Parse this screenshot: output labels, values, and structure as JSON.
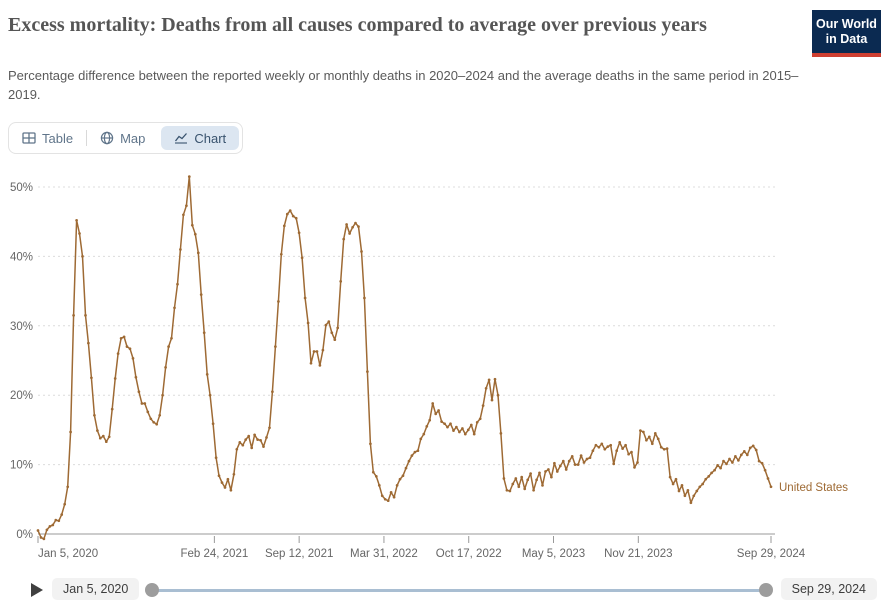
{
  "header": {
    "title": "Excess mortality: Deaths from all causes compared to average over previous years",
    "subtitle": "Percentage difference between the reported weekly or monthly deaths in 2020–2024 and the average deaths in the same period in 2015–2019.",
    "logo": {
      "line1": "Our World",
      "line2": "in Data",
      "bg_color": "#0b2a51",
      "accent_color": "#cf3f31"
    }
  },
  "tabs": {
    "items": [
      {
        "label": "Table",
        "icon": "table-grid-icon",
        "active": false
      },
      {
        "label": "Map",
        "icon": "globe-icon",
        "active": false
      },
      {
        "label": "Chart",
        "icon": "line-chart-icon",
        "active": true
      }
    ],
    "active_bg": "#dce6f1"
  },
  "chart_data": {
    "type": "line",
    "title": "Excess mortality: Deaths from all causes compared to average over previous years",
    "xlabel": "",
    "ylabel": "",
    "unit": "%",
    "grid": true,
    "legend_position": "end-of-line",
    "text_color": "#666666",
    "grid_color": "#dcdcdc",
    "zero_line_color": "#999999",
    "y_axis": {
      "ticks": [
        0,
        10,
        20,
        30,
        40,
        50
      ],
      "tick_labels": [
        "0%",
        "10%",
        "20%",
        "30%",
        "40%",
        "50%"
      ],
      "range": [
        -2,
        52
      ]
    },
    "x_axis": {
      "ticks": [
        {
          "label": "Jan 5, 2020",
          "week": 0,
          "anchor": "start"
        },
        {
          "label": "Feb 24, 2021",
          "week": 59.43,
          "anchor": "middle"
        },
        {
          "label": "Sep 12, 2021",
          "week": 88.0,
          "anchor": "middle"
        },
        {
          "label": "Mar 31, 2022",
          "week": 116.57,
          "anchor": "middle"
        },
        {
          "label": "Oct 17, 2022",
          "week": 145.14,
          "anchor": "middle"
        },
        {
          "label": "May 5, 2023",
          "week": 173.71,
          "anchor": "middle"
        },
        {
          "label": "Nov 21, 2023",
          "week": 202.29,
          "anchor": "middle"
        },
        {
          "label": "Sep 29, 2024",
          "week": 247.0,
          "anchor": "middle"
        }
      ]
    },
    "series": [
      {
        "name": "United States",
        "color": "#9e6a34",
        "interval": "weekly",
        "start": "Jan 5, 2020",
        "end": "Sep 29, 2024",
        "values": [
          0.5,
          -0.5,
          -0.7,
          0.6,
          1.1,
          1.3,
          2.0,
          1.9,
          2.8,
          4.3,
          6.8,
          14.7,
          31.5,
          45.2,
          43.3,
          40.0,
          31.5,
          27.5,
          22.5,
          17.1,
          14.9,
          13.8,
          14.1,
          13.3,
          14.0,
          18.0,
          22.4,
          26.0,
          28.2,
          28.4,
          27.0,
          26.7,
          25.3,
          22.6,
          20.5,
          18.8,
          18.8,
          17.6,
          16.6,
          16.1,
          15.8,
          17.1,
          20.0,
          24.0,
          27.0,
          28.2,
          32.6,
          36.0,
          41.0,
          46.0,
          47.3,
          51.5,
          44.5,
          43.2,
          40.5,
          34.5,
          29.0,
          23.0,
          20.0,
          15.9,
          11.0,
          8.4,
          7.4,
          6.7,
          7.9,
          6.3,
          8.6,
          12.2,
          13.2,
          12.8,
          13.6,
          14.1,
          12.4,
          14.3,
          13.6,
          13.5,
          12.6,
          13.9,
          15.3,
          20.5,
          27.0,
          33.5,
          40.3,
          44.4,
          46.1,
          46.6,
          45.8,
          45.5,
          43.4,
          39.8,
          34.0,
          30.4,
          24.6,
          26.3,
          26.3,
          24.3,
          26.5,
          30.1,
          30.6,
          29.0,
          28.0,
          29.7,
          36.4,
          42.5,
          44.6,
          43.3,
          44.2,
          44.8,
          44.3,
          40.7,
          34.0,
          23.4,
          13.0,
          8.9,
          8.3,
          7.0,
          5.5,
          5.0,
          4.8,
          6.0,
          5.3,
          7.0,
          7.9,
          8.4,
          9.5,
          10.5,
          11.3,
          11.8,
          12.0,
          13.7,
          14.4,
          15.5,
          16.4,
          18.8,
          17.3,
          17.8,
          16.2,
          15.9,
          15.4,
          15.9,
          14.9,
          15.4,
          14.7,
          15.2,
          14.4,
          15.0,
          15.7,
          14.4,
          16.1,
          16.6,
          18.5,
          21.0,
          22.2,
          19.3,
          22.3,
          20.0,
          14.5,
          8.0,
          6.3,
          6.2,
          7.2,
          8.0,
          6.8,
          8.2,
          6.5,
          7.8,
          8.7,
          6.3,
          7.8,
          8.8,
          7.0,
          9.0,
          9.3,
          8.2,
          10.2,
          9.0,
          9.8,
          10.5,
          9.3,
          10.5,
          11.2,
          10.0,
          10.0,
          11.3,
          10.3,
          10.8,
          11.0,
          12.0,
          12.8,
          12.5,
          13.0,
          12.2,
          12.6,
          12.8,
          10.1,
          12.0,
          13.2,
          12.3,
          12.8,
          11.5,
          11.8,
          9.6,
          10.3,
          14.9,
          14.7,
          13.5,
          14.0,
          13.0,
          14.5,
          13.7,
          12.5,
          12.2,
          12.3,
          8.2,
          7.2,
          7.9,
          6.2,
          7.0,
          5.5,
          6.3,
          4.5,
          5.5,
          6.2,
          6.8,
          7.2,
          7.9,
          8.3,
          8.8,
          9.2,
          9.9,
          9.5,
          10.5,
          10.1,
          10.8,
          10.3,
          11.2,
          10.6,
          11.4,
          11.9,
          11.4,
          12.4,
          12.7,
          12.1,
          10.5,
          10.2,
          9.2,
          8.0,
          6.8
        ]
      }
    ]
  },
  "timeline": {
    "start_label": "Jan 5, 2020",
    "end_label": "Sep 29, 2024"
  }
}
